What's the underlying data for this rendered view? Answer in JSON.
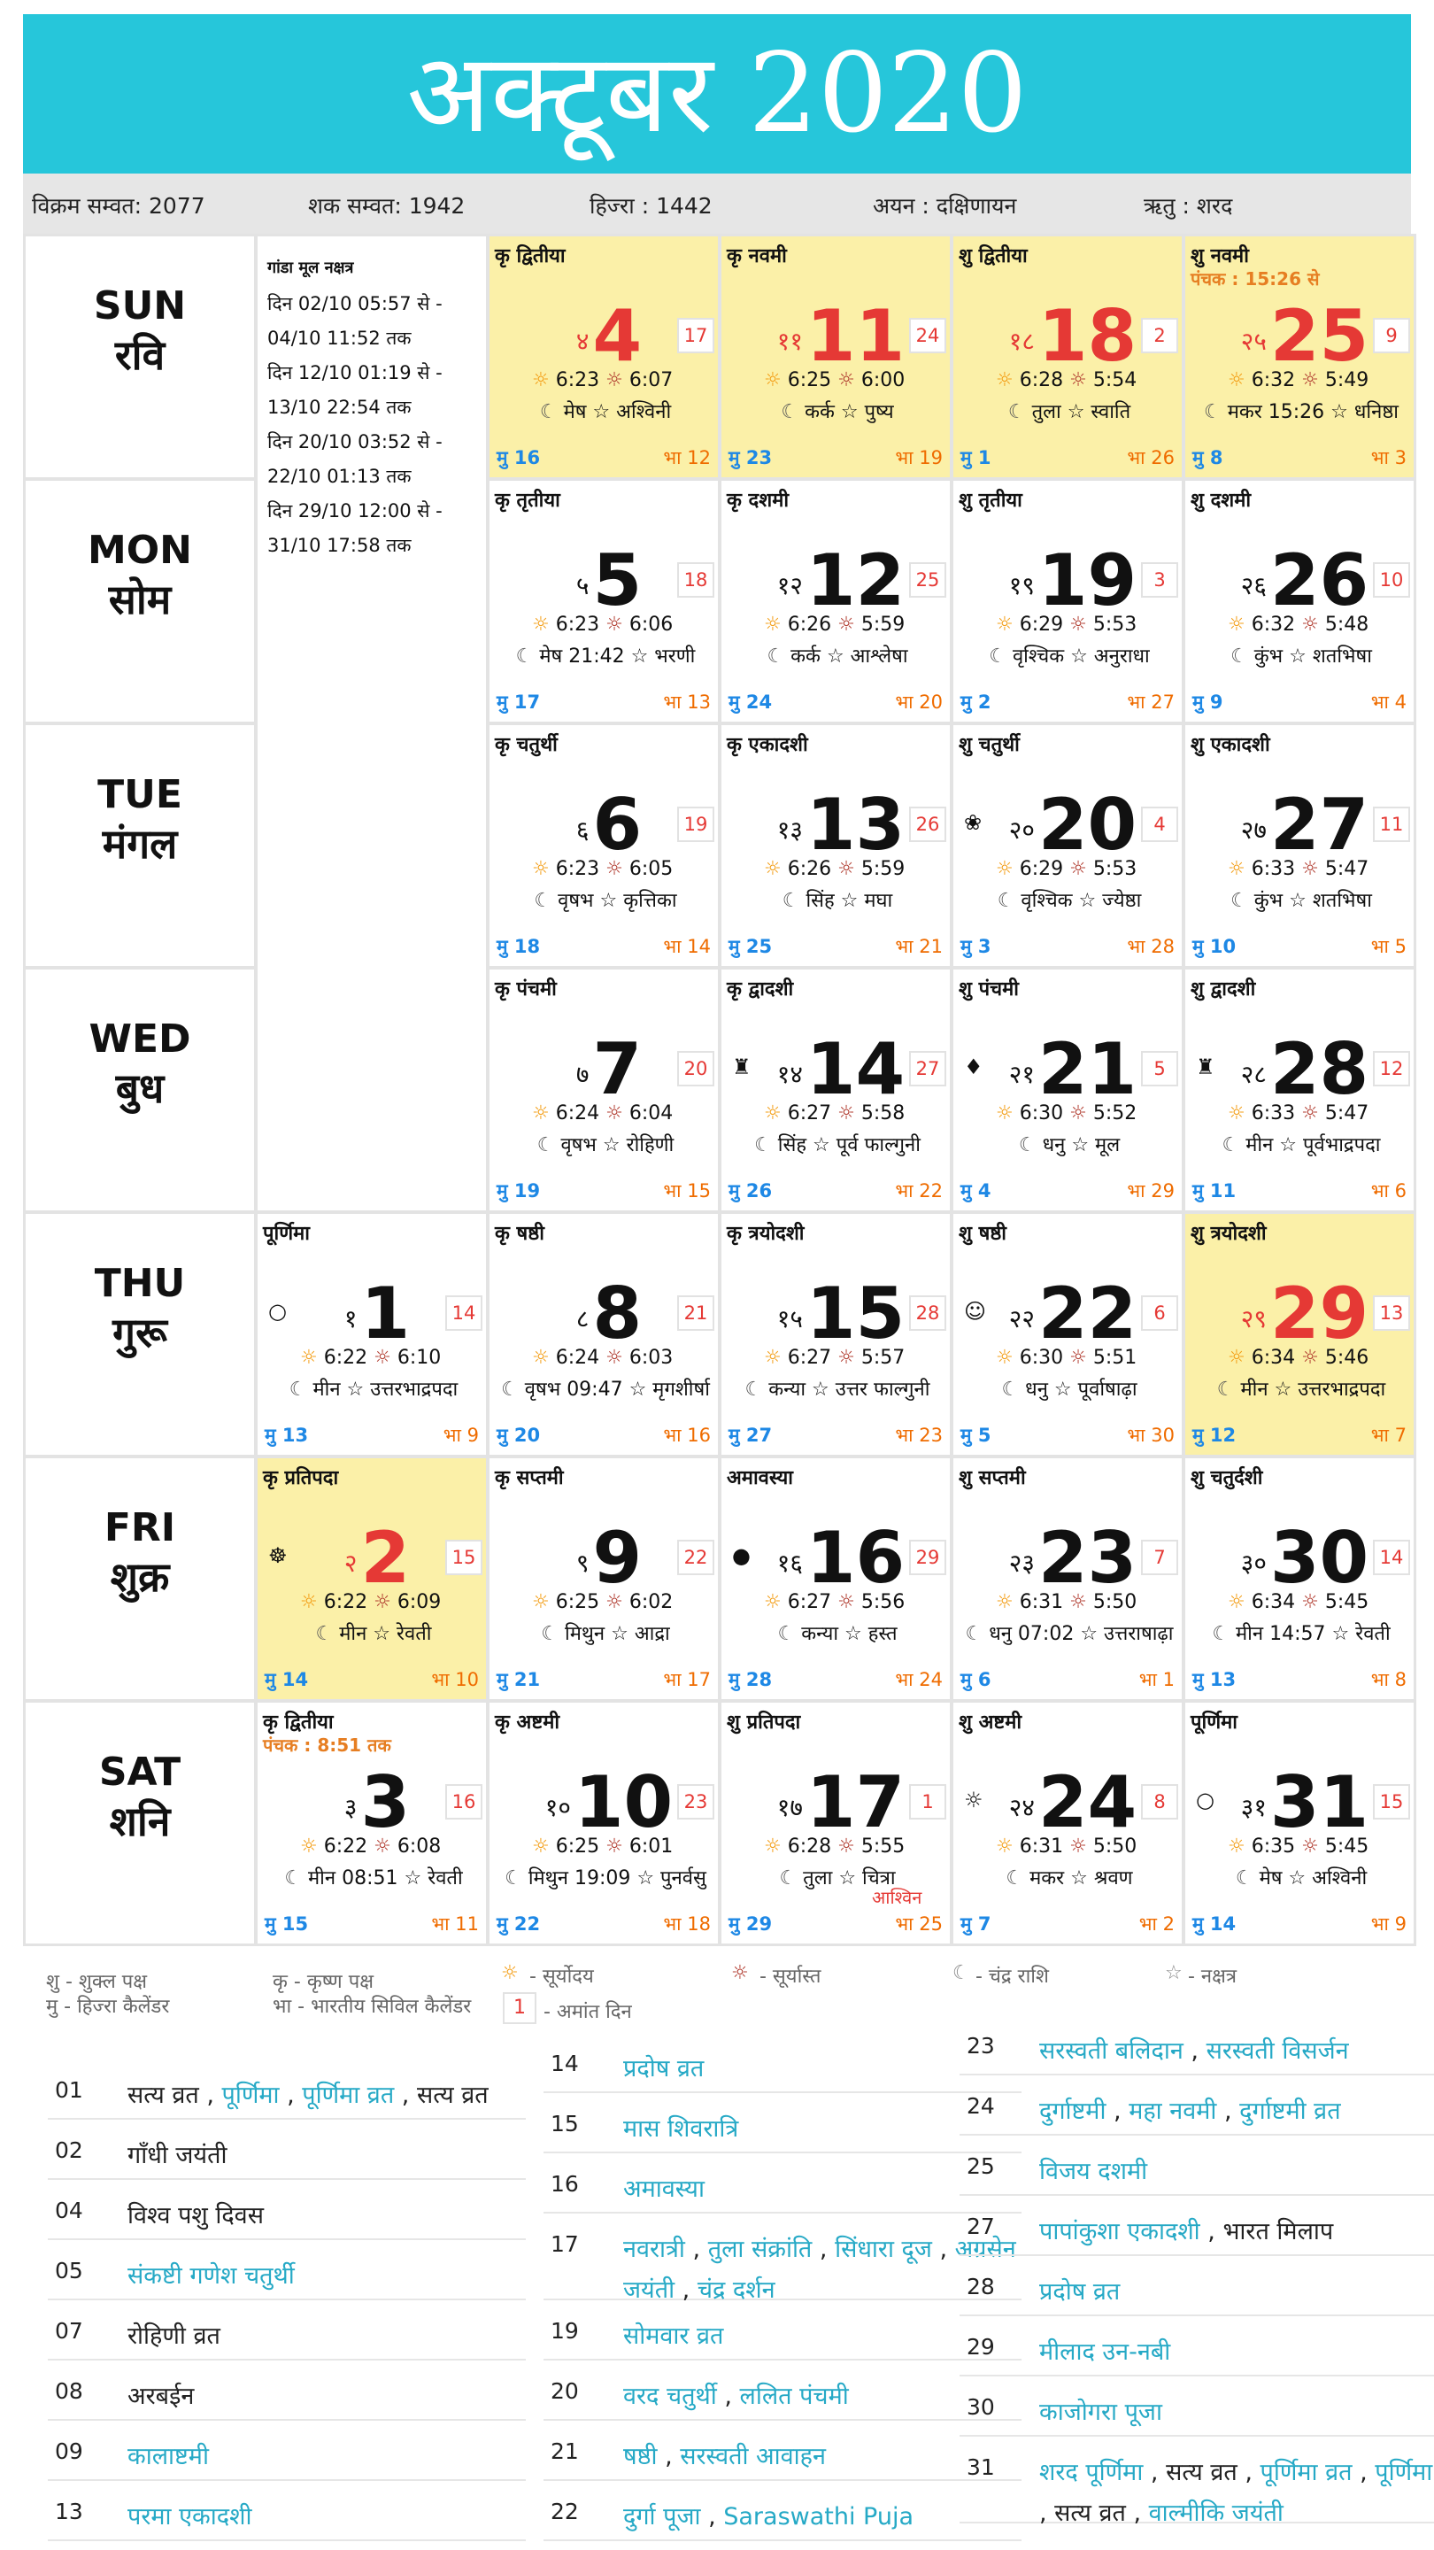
{
  "title": "अक्टूबर 2020",
  "info": {
    "vikram": "विक्रम सम्वत: 2077",
    "shaka": "शक सम्वत: 1942",
    "hijri": "हिज्‍रा : 1442",
    "ayan": "अयन : दक्षिणायन",
    "ritu": "ऋतु : शरद"
  },
  "days": [
    {
      "en": "SUN",
      "hi": "रवि"
    },
    {
      "en": "MON",
      "hi": "सोम"
    },
    {
      "en": "TUE",
      "hi": "मंगल"
    },
    {
      "en": "WED",
      "hi": "बुध"
    },
    {
      "en": "THU",
      "hi": "गुरू"
    },
    {
      "en": "FRI",
      "hi": "शुक्र"
    },
    {
      "en": "SAT",
      "hi": "शनि"
    }
  ],
  "gandmool": {
    "heading": "गांडा मूल नक्षत्र",
    "lines": [
      "दिन 02/10 05:57 से -",
      "04/10 11:52 तक",
      "दिन 12/10 01:19 से -",
      "13/10 22:54 तक",
      "दिन 20/10 03:52 से -",
      "22/10 01:13 तक",
      "दिन 29/10 12:00 से -",
      "31/10 17:58 तक"
    ]
  },
  "cells": [
    {
      "col": 0,
      "row": 4,
      "tithi": "पूर्णिमा",
      "sn": "१",
      "date": "1",
      "amant": "14",
      "rise": "6:22",
      "set": "6:10",
      "moon": "मीन ☆ उत्तरभाद्रपदा",
      "mu": "मु 13",
      "bha": "भा 9",
      "icon": "full-moon-icon",
      "glyph": "○"
    },
    {
      "col": 0,
      "row": 5,
      "tithi": "कृ प्रतिपदा",
      "sn": "२",
      "date": "2",
      "amant": "15",
      "rise": "6:22",
      "set": "6:09",
      "moon": "मीन ☆ रेवती",
      "mu": "मु 14",
      "bha": "भा 10",
      "hl": true,
      "red": true,
      "icon": "deity-icon",
      "glyph": "☸"
    },
    {
      "col": 0,
      "row": 6,
      "tithi": "कृ द्वितीया",
      "panchak": "पंचक : 8:51 तक",
      "sn": "३",
      "date": "3",
      "amant": "16",
      "rise": "6:22",
      "set": "6:08",
      "moon": "मीन 08:51 ☆ रेवती",
      "mu": "मु 15",
      "bha": "भा 11"
    },
    {
      "col": 1,
      "row": 0,
      "tithi": "कृ द्वितीया",
      "sn": "४",
      "date": "4",
      "amant": "17",
      "rise": "6:23",
      "set": "6:07",
      "moon": "मेष ☆ अश्विनी",
      "mu": "मु 16",
      "bha": "भा 12",
      "hl": true,
      "red": true
    },
    {
      "col": 1,
      "row": 1,
      "tithi": "कृ तृतीया",
      "sn": "५",
      "date": "5",
      "amant": "18",
      "rise": "6:23",
      "set": "6:06",
      "moon": "मेष 21:42 ☆ भरणी",
      "mu": "मु 17",
      "bha": "भा 13"
    },
    {
      "col": 1,
      "row": 2,
      "tithi": "कृ चतुर्थी",
      "sn": "६",
      "date": "6",
      "amant": "19",
      "rise": "6:23",
      "set": "6:05",
      "moon": "वृषभ ☆ कृत्तिका",
      "mu": "मु 18",
      "bha": "भा 14"
    },
    {
      "col": 1,
      "row": 3,
      "tithi": "कृ पंचमी",
      "sn": "७",
      "date": "7",
      "amant": "20",
      "rise": "6:24",
      "set": "6:04",
      "moon": "वृषभ ☆ रोहिणी",
      "mu": "मु 19",
      "bha": "भा 15"
    },
    {
      "col": 1,
      "row": 4,
      "tithi": "कृ षष्ठी",
      "sn": "८",
      "date": "8",
      "amant": "21",
      "rise": "6:24",
      "set": "6:03",
      "moon": "वृषभ 09:47 ☆ मृगशीर्षा",
      "mu": "मु 20",
      "bha": "भा 16"
    },
    {
      "col": 1,
      "row": 5,
      "tithi": "कृ सप्तमी",
      "sn": "९",
      "date": "9",
      "amant": "22",
      "rise": "6:25",
      "set": "6:02",
      "moon": "मिथुन ☆ आद्रा",
      "mu": "मु 21",
      "bha": "भा 17"
    },
    {
      "col": 1,
      "row": 6,
      "tithi": "कृ अष्टमी",
      "sn": "१०",
      "date": "10",
      "amant": "23",
      "rise": "6:25",
      "set": "6:01",
      "moon": "मिथुन 19:09 ☆ पुनर्वसु",
      "mu": "मु 22",
      "bha": "भा 18"
    },
    {
      "col": 2,
      "row": 0,
      "tithi": "कृ नवमी",
      "sn": "११",
      "date": "11",
      "amant": "24",
      "rise": "6:25",
      "set": "6:00",
      "moon": "कर्क ☆ पुष्य",
      "mu": "मु 23",
      "bha": "भा 19",
      "hl": true,
      "red": true
    },
    {
      "col": 2,
      "row": 1,
      "tithi": "कृ दशमी",
      "sn": "१२",
      "date": "12",
      "amant": "25",
      "rise": "6:26",
      "set": "5:59",
      "moon": "कर्क ☆ आश्लेषा",
      "mu": "मु 24",
      "bha": "भा 20"
    },
    {
      "col": 2,
      "row": 2,
      "tithi": "कृ एकादशी",
      "sn": "१३",
      "date": "13",
      "amant": "26",
      "rise": "6:26",
      "set": "5:59",
      "moon": "सिंह ☆ मघा",
      "mu": "मु 25",
      "bha": "भा 21"
    },
    {
      "col": 2,
      "row": 3,
      "tithi": "कृ द्वादशी",
      "sn": "१४",
      "date": "14",
      "amant": "27",
      "rise": "6:27",
      "set": "5:58",
      "moon": "सिंह ☆ पूर्व फाल्गुनी",
      "mu": "मु 26",
      "bha": "भा 22",
      "icon": "deity-icon",
      "glyph": "♜"
    },
    {
      "col": 2,
      "row": 4,
      "tithi": "कृ त्रयोदशी",
      "sn": "१५",
      "date": "15",
      "amant": "28",
      "rise": "6:27",
      "set": "5:57",
      "moon": "कन्या ☆ उत्तर फाल्गुनी",
      "mu": "मु 27",
      "bha": "भा 23"
    },
    {
      "col": 2,
      "row": 5,
      "tithi": "अमावस्या",
      "sn": "१६",
      "date": "16",
      "amant": "29",
      "rise": "6:27",
      "set": "5:56",
      "moon": "कन्या ☆ हस्त",
      "mu": "मु 28",
      "bha": "भा 24",
      "icon": "new-moon-icon",
      "glyph": "●"
    },
    {
      "col": 2,
      "row": 6,
      "tithi": "शु प्रतिपदा",
      "sn": "१७",
      "date": "17",
      "amant": "1",
      "sub": "आश्विन",
      "rise": "6:28",
      "set": "5:55",
      "moon": "तुला ☆ चित्रा",
      "mu": "मु 29",
      "bha": "भा 25"
    },
    {
      "col": 3,
      "row": 0,
      "tithi": "शु द्वितीया",
      "sn": "१८",
      "date": "18",
      "amant": "2",
      "rise": "6:28",
      "set": "5:54",
      "moon": "तुला ☆ स्वाति",
      "mu": "मु 1",
      "bha": "भा 26",
      "hl": true,
      "red": true
    },
    {
      "col": 3,
      "row": 1,
      "tithi": "शु तृतीया",
      "sn": "१९",
      "date": "19",
      "amant": "3",
      "rise": "6:29",
      "set": "5:53",
      "moon": "वृश्चिक ☆ अनुराधा",
      "mu": "मु 2",
      "bha": "भा 27"
    },
    {
      "col": 3,
      "row": 2,
      "tithi": "शु चतुर्थी",
      "sn": "२०",
      "date": "20",
      "amant": "4",
      "rise": "6:29",
      "set": "5:53",
      "moon": "वृश्चिक ☆ ज्येष्ठा",
      "mu": "मु 3",
      "bha": "भा 28",
      "icon": "deity-icon",
      "glyph": "❀"
    },
    {
      "col": 3,
      "row": 3,
      "tithi": "शु पंचमी",
      "sn": "२१",
      "date": "21",
      "amant": "5",
      "rise": "6:30",
      "set": "5:52",
      "moon": "धनु ☆ मूल",
      "mu": "मु 4",
      "bha": "भा 29",
      "icon": "deity-icon",
      "glyph": "♦"
    },
    {
      "col": 3,
      "row": 4,
      "tithi": "शु षष्ठी",
      "sn": "२२",
      "date": "22",
      "amant": "6",
      "rise": "6:30",
      "set": "5:51",
      "moon": "धनु ☆ पूर्वाषाढ़ा",
      "mu": "मु 5",
      "bha": "भा 30",
      "icon": "deity-icon",
      "glyph": "☺"
    },
    {
      "col": 3,
      "row": 5,
      "tithi": "शु सप्तमी",
      "sn": "२३",
      "date": "23",
      "amant": "7",
      "rise": "6:31",
      "set": "5:50",
      "moon": "धनु 07:02 ☆ उत्तराषाढ़ा",
      "mu": "मु 6",
      "bha": "भा 1"
    },
    {
      "col": 3,
      "row": 6,
      "tithi": "शु अष्टमी",
      "sn": "२४",
      "date": "24",
      "amant": "8",
      "rise": "6:31",
      "set": "5:50",
      "moon": "मकर ☆ श्रवण",
      "mu": "मु 7",
      "bha": "भा 2",
      "icon": "deity-icon",
      "glyph": "☼"
    },
    {
      "col": 4,
      "row": 0,
      "tithi": "शु नवमी",
      "panchak": "पंचक : 15:26 से",
      "sn": "२५",
      "date": "25",
      "amant": "9",
      "rise": "6:32",
      "set": "5:49",
      "moon": "मकर 15:26 ☆ धनिष्ठा",
      "mu": "मु 8",
      "bha": "भा 3",
      "hl": true,
      "red": true
    },
    {
      "col": 4,
      "row": 1,
      "tithi": "शु दशमी",
      "sn": "२६",
      "date": "26",
      "amant": "10",
      "rise": "6:32",
      "set": "5:48",
      "moon": "कुंभ ☆ शतभिषा",
      "mu": "मु 9",
      "bha": "भा 4"
    },
    {
      "col": 4,
      "row": 2,
      "tithi": "शु एकादशी",
      "sn": "२७",
      "date": "27",
      "amant": "11",
      "rise": "6:33",
      "set": "5:47",
      "moon": "कुंभ ☆ शतभिषा",
      "mu": "मु 10",
      "bha": "भा 5"
    },
    {
      "col": 4,
      "row": 3,
      "tithi": "शु द्वादशी",
      "sn": "२८",
      "date": "28",
      "amant": "12",
      "rise": "6:33",
      "set": "5:47",
      "moon": "मीन ☆ पूर्वभाद्रपदा",
      "mu": "मु 11",
      "bha": "भा 6",
      "icon": "deity-icon",
      "glyph": "♜"
    },
    {
      "col": 4,
      "row": 4,
      "tithi": "शु त्रयोदशी",
      "sn": "२९",
      "date": "29",
      "amant": "13",
      "rise": "6:34",
      "set": "5:46",
      "moon": "मीन ☆ उत्तरभाद्रपदा",
      "mu": "मु 12",
      "bha": "भा 7",
      "hl": true,
      "red": true
    },
    {
      "col": 4,
      "row": 5,
      "tithi": "शु चतुर्दशी",
      "sn": "३०",
      "date": "30",
      "amant": "14",
      "rise": "6:34",
      "set": "5:45",
      "moon": "मीन 14:57 ☆ रेवती",
      "mu": "मु 13",
      "bha": "भा 8"
    },
    {
      "col": 4,
      "row": 6,
      "tithi": "पूर्णिमा",
      "sn": "३१",
      "date": "31",
      "amant": "15",
      "rise": "6:35",
      "set": "5:45",
      "moon": "मेष ☆ अश्विनी",
      "mu": "मु 14",
      "bha": "भा 9",
      "icon": "full-moon-icon",
      "glyph": "○"
    }
  ],
  "legend": {
    "shukla": "शु - शुक्ल पक्ष",
    "krishna": "कृ - कृष्ण पक्ष",
    "hijri": "मु - हिज्‍रा कैलेंडर",
    "bharat": "भा - भारतीय सिविल कैलेंडर",
    "sunrise": "- सूर्योदय",
    "sunset": "- सूर्यास्त",
    "moon": "- चंद्र राशि",
    "star": "- नक्षत्र",
    "amant_box": "1",
    "amant": "- अमांत दिन"
  },
  "festivals": [
    [
      {
        "d": "01",
        "parts": [
          {
            "t": "सत्य व्रत",
            "l": false
          },
          {
            "t": "पूर्णिमा",
            "l": true
          },
          {
            "t": "पूर्णिमा व्रत",
            "l": true
          },
          {
            "t": "सत्य व्रत",
            "l": false
          }
        ]
      },
      {
        "d": "02",
        "parts": [
          {
            "t": "गाँधी जयंती",
            "l": false
          }
        ]
      },
      {
        "d": "04",
        "parts": [
          {
            "t": "विश्व पशु दिवस",
            "l": false
          }
        ]
      },
      {
        "d": "05",
        "parts": [
          {
            "t": "संकष्टी गणेश चतुर्थी",
            "l": true
          }
        ]
      },
      {
        "d": "07",
        "parts": [
          {
            "t": "रोहिणी व्रत",
            "l": false
          }
        ]
      },
      {
        "d": "08",
        "parts": [
          {
            "t": "अरबईन",
            "l": false
          }
        ]
      },
      {
        "d": "09",
        "parts": [
          {
            "t": "कालाष्टमी",
            "l": true
          }
        ]
      },
      {
        "d": "13",
        "parts": [
          {
            "t": "परमा एकादशी",
            "l": true
          }
        ]
      }
    ],
    [
      {
        "d": "14",
        "parts": [
          {
            "t": "प्रदोष व्रत",
            "l": true
          }
        ]
      },
      {
        "d": "15",
        "parts": [
          {
            "t": "मास शिवरात्रि",
            "l": true
          }
        ]
      },
      {
        "d": "16",
        "parts": [
          {
            "t": "अमावस्या",
            "l": true
          }
        ]
      },
      {
        "d": "17",
        "parts": [
          {
            "t": "नवरात्री",
            "l": true
          },
          {
            "t": "तुला संक्रांति",
            "l": true
          },
          {
            "t": "सिंधारा दूज",
            "l": true
          },
          {
            "t": "अग्रसेन जयंती",
            "l": true
          },
          {
            "t": "चंद्र दर्शन",
            "l": true
          }
        ],
        "two": true
      },
      {
        "d": "19",
        "parts": [
          {
            "t": "सोमवार व्रत",
            "l": true
          }
        ]
      },
      {
        "d": "20",
        "parts": [
          {
            "t": "वरद चतुर्थी",
            "l": true
          },
          {
            "t": "ललित पंचमी",
            "l": true
          }
        ]
      },
      {
        "d": "21",
        "parts": [
          {
            "t": "षष्ठी",
            "l": true
          },
          {
            "t": "सरस्वती आवाहन",
            "l": true
          }
        ]
      },
      {
        "d": "22",
        "parts": [
          {
            "t": "दुर्गा पूजा",
            "l": true
          },
          {
            "t": "Saraswathi Puja",
            "l": true
          }
        ]
      }
    ],
    [
      {
        "d": "23",
        "parts": [
          {
            "t": "सरस्वती बलिदान",
            "l": true
          },
          {
            "t": "सरस्वती विसर्जन",
            "l": true
          }
        ]
      },
      {
        "d": "24",
        "parts": [
          {
            "t": "दुर्गाष्टमी",
            "l": true
          },
          {
            "t": "महा नवमी",
            "l": true
          },
          {
            "t": "दुर्गाष्टमी व्रत",
            "l": true
          }
        ]
      },
      {
        "d": "25",
        "parts": [
          {
            "t": "विजय दशमी",
            "l": true
          }
        ]
      },
      {
        "d": "27",
        "parts": [
          {
            "t": "पापांकुशा एकादशी",
            "l": true
          },
          {
            "t": "भारत मिलाप",
            "l": false
          }
        ]
      },
      {
        "d": "28",
        "parts": [
          {
            "t": "प्रदोष व्रत",
            "l": true
          }
        ]
      },
      {
        "d": "29",
        "parts": [
          {
            "t": "मीलाद उन-नबी",
            "l": true
          }
        ]
      },
      {
        "d": "30",
        "parts": [
          {
            "t": "काजोगरा पूजा",
            "l": true
          }
        ]
      },
      {
        "d": "31",
        "parts": [
          {
            "t": "शरद पूर्णिमा",
            "l": true
          },
          {
            "t": "सत्य व्रत",
            "l": false
          },
          {
            "t": "पूर्णिमा व्रत",
            "l": true
          },
          {
            "t": "पूर्णिमा",
            "l": true
          },
          {
            "t": "सत्य व्रत",
            "l": false
          },
          {
            "t": "वाल्मीकि जयंती",
            "l": true
          }
        ],
        "two": true
      }
    ]
  ]
}
